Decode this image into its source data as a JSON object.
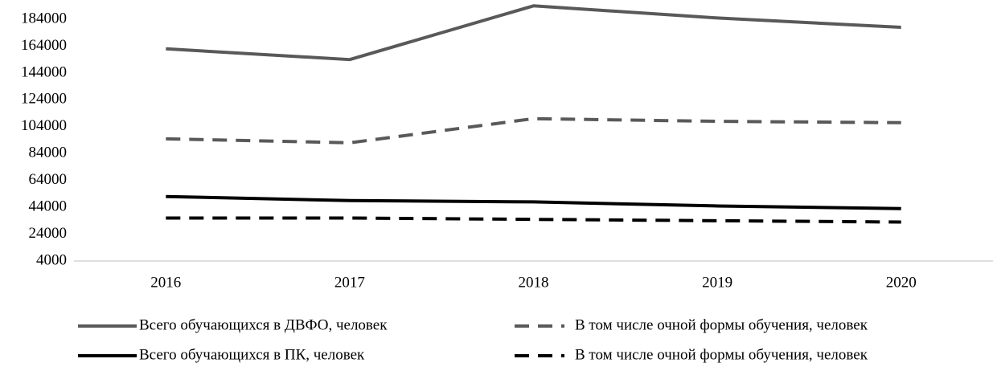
{
  "chart_data": {
    "type": "line",
    "categories": [
      "2016",
      "2017",
      "2018",
      "2019",
      "2020"
    ],
    "series": [
      {
        "name": "Всего обучающихся в ДВФО, человек",
        "color": "#595959",
        "dashed": false,
        "values": [
          162000,
          154000,
          194000,
          185000,
          178000
        ]
      },
      {
        "name": "В том числе очной формы обучения, человек",
        "color": "#595959",
        "dashed": true,
        "values": [
          95000,
          92000,
          110000,
          108000,
          107000
        ]
      },
      {
        "name": "Всего обучающихся в ПК, человек",
        "color": "#000000",
        "dashed": false,
        "values": [
          52000,
          49000,
          48000,
          45000,
          43000
        ]
      },
      {
        "name": "В том числе очной формы обучения, человек",
        "color": "#000000",
        "dashed": true,
        "values": [
          36000,
          36000,
          35000,
          34000,
          33000
        ]
      }
    ],
    "ylim": [
      4000,
      194000
    ],
    "yticks": [
      4000,
      24000,
      44000,
      64000,
      84000,
      104000,
      124000,
      144000,
      164000,
      184000
    ],
    "grid": false,
    "legend": "bottom"
  }
}
